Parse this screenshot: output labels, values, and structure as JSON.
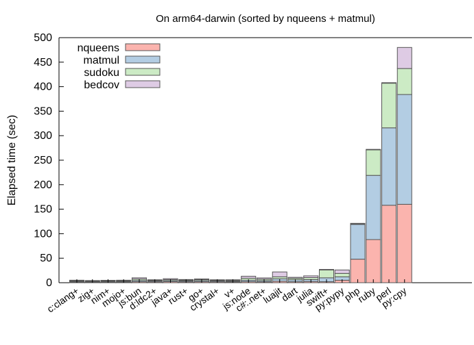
{
  "chart_data": {
    "type": "bar",
    "stacked": true,
    "title": "On arm64-darwin (sorted by nqueens + matmul)",
    "xlabel": "",
    "ylabel": "Elapsed time (sec)",
    "ylim": [
      0,
      500
    ],
    "yticks": [
      0,
      50,
      100,
      150,
      200,
      250,
      300,
      350,
      400,
      450,
      500
    ],
    "grid": false,
    "legend_position": "top-left",
    "categories": [
      "c:clang+",
      "zig+",
      "nim+",
      "mojo+",
      "js:bun",
      "d:ldc2+",
      "java+",
      "rust+",
      "go+",
      "crystal+",
      "v+",
      "js:node",
      "c#:.net+",
      "luajit",
      "dart",
      "julia",
      "swift+",
      "py:pypy",
      "php",
      "ruby",
      "perl",
      "py:cpy"
    ],
    "series": [
      {
        "name": "nqueens",
        "color": "#fbb4ae",
        "values": [
          1.5,
          1.3,
          1.5,
          1.5,
          2.0,
          1.8,
          2.2,
          1.8,
          2.0,
          1.8,
          1.6,
          2.2,
          1.8,
          3.0,
          2.0,
          2.5,
          2.0,
          5.0,
          48,
          88,
          158,
          160
        ]
      },
      {
        "name": "matmul",
        "color": "#b3cde3",
        "values": [
          1.5,
          1.3,
          1.5,
          1.5,
          2.5,
          1.8,
          2.0,
          1.9,
          2.2,
          1.8,
          1.6,
          3.0,
          2.5,
          5.0,
          4.0,
          4.0,
          8.0,
          7.0,
          71,
          131,
          158,
          224
        ]
      },
      {
        "name": "sudoku",
        "color": "#ccebc5",
        "values": [
          1.0,
          0.7,
          0.8,
          1.0,
          3.0,
          1.2,
          2.0,
          1.5,
          2.0,
          1.2,
          1.3,
          4.0,
          3.0,
          4.0,
          3.0,
          4.0,
          16.0,
          7.0,
          1,
          52,
          91,
          53
        ]
      },
      {
        "name": "bedcov",
        "color": "#decbe4",
        "values": [
          1.0,
          0.7,
          0.7,
          1.0,
          2.5,
          1.2,
          2.0,
          1.3,
          1.5,
          1.2,
          1.5,
          4.0,
          2.5,
          10.0,
          2.0,
          3.5,
          1.0,
          7.0,
          0.5,
          0.5,
          1,
          43
        ]
      }
    ]
  }
}
